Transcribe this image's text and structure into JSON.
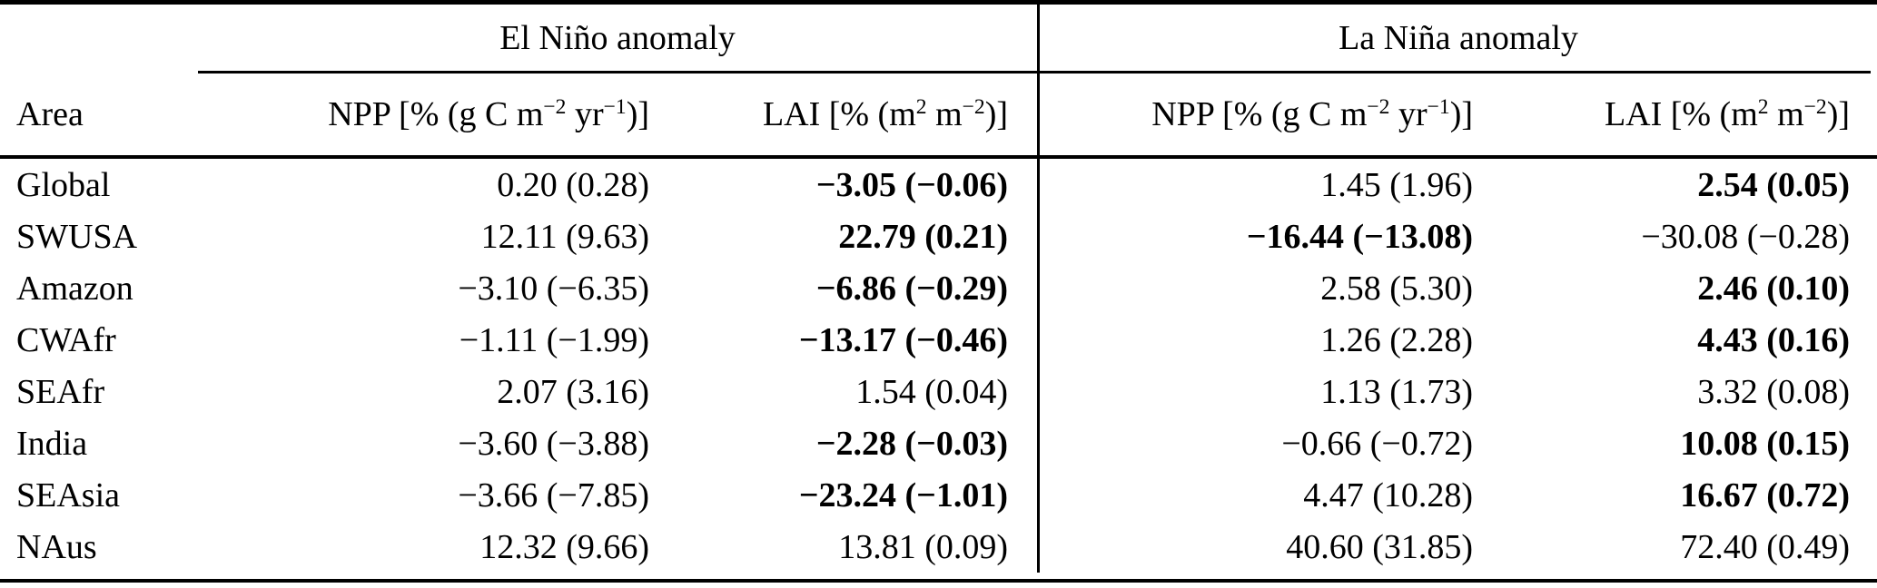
{
  "table": {
    "area_header": "Area",
    "groups": [
      {
        "label": "El Niño anomaly"
      },
      {
        "label": "La Niña anomaly"
      }
    ],
    "unit_parts": {
      "npp": {
        "pre": "NPP [% (g C m",
        "sup1": "−2",
        "mid": " yr",
        "sup2": "−1",
        "post": ")]"
      },
      "lai": {
        "pre": "LAI [% (m",
        "sup1": "2",
        "mid": " m",
        "sup2": "−2",
        "post": ")]"
      }
    },
    "rows": [
      {
        "area": "Global",
        "cells": [
          {
            "text": "0.20 (0.28)",
            "bold": false
          },
          {
            "text": "−3.05 (−0.06)",
            "bold": true
          },
          {
            "text": "1.45 (1.96)",
            "bold": false
          },
          {
            "text": "2.54 (0.05)",
            "bold": true
          }
        ]
      },
      {
        "area": "SWUSA",
        "cells": [
          {
            "text": "12.11 (9.63)",
            "bold": false
          },
          {
            "text": "22.79 (0.21)",
            "bold": true
          },
          {
            "text": "−16.44 (−13.08)",
            "bold": true
          },
          {
            "text": "−30.08 (−0.28)",
            "bold": false
          }
        ]
      },
      {
        "area": "Amazon",
        "cells": [
          {
            "text": "−3.10 (−6.35)",
            "bold": false
          },
          {
            "text": "−6.86 (−0.29)",
            "bold": true
          },
          {
            "text": "2.58 (5.30)",
            "bold": false
          },
          {
            "text": "2.46 (0.10)",
            "bold": true
          }
        ]
      },
      {
        "area": "CWAfr",
        "cells": [
          {
            "text": "−1.11 (−1.99)",
            "bold": false
          },
          {
            "text": "−13.17 (−0.46)",
            "bold": true
          },
          {
            "text": "1.26 (2.28)",
            "bold": false
          },
          {
            "text": "4.43 (0.16)",
            "bold": true
          }
        ]
      },
      {
        "area": "SEAfr",
        "cells": [
          {
            "text": "2.07 (3.16)",
            "bold": false
          },
          {
            "text": "1.54 (0.04)",
            "bold": false
          },
          {
            "text": "1.13 (1.73)",
            "bold": false
          },
          {
            "text": "3.32 (0.08)",
            "bold": false
          }
        ]
      },
      {
        "area": "India",
        "cells": [
          {
            "text": "−3.60 (−3.88)",
            "bold": false
          },
          {
            "text": "−2.28 (−0.03)",
            "bold": true
          },
          {
            "text": "−0.66 (−0.72)",
            "bold": false
          },
          {
            "text": "10.08 (0.15)",
            "bold": true
          }
        ]
      },
      {
        "area": "SEAsia",
        "cells": [
          {
            "text": "−3.66 (−7.85)",
            "bold": false
          },
          {
            "text": "−23.24 (−1.01)",
            "bold": true
          },
          {
            "text": "4.47 (10.28)",
            "bold": false
          },
          {
            "text": "16.67 (0.72)",
            "bold": true
          }
        ]
      },
      {
        "area": "NAus",
        "cells": [
          {
            "text": "12.32 (9.66)",
            "bold": false
          },
          {
            "text": "13.81 (0.09)",
            "bold": false
          },
          {
            "text": "40.60 (31.85)",
            "bold": false
          },
          {
            "text": "72.40 (0.49)",
            "bold": false
          }
        ]
      }
    ]
  }
}
